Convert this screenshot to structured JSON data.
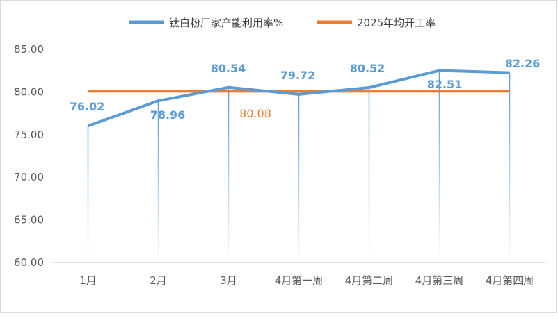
{
  "chart_data": {
    "type": "line",
    "title": "",
    "xlabel": "",
    "ylabel": "",
    "ylim": [
      60,
      85
    ],
    "yticks": [
      "60.00",
      "65.00",
      "70.00",
      "75.00",
      "80.00",
      "85.00"
    ],
    "categories": [
      "1月",
      "2月",
      "3月",
      "4月第一周",
      "4月第二周",
      "4月第三周",
      "4月第四周"
    ],
    "legend_position": "top",
    "grid": false,
    "drop_lines": true,
    "series": [
      {
        "name": "钛白粉厂家产能利用率%",
        "color": "#5b9bd5",
        "values": [
          76.02,
          78.96,
          80.54,
          79.72,
          80.52,
          82.51,
          82.26
        ],
        "labels": [
          "76.02",
          "78.96",
          "80.54",
          "79.72",
          "80.52",
          "82.51",
          "82.26"
        ]
      },
      {
        "name": "2025年均开工率",
        "color": "#ed7d31",
        "values": [
          80.08,
          80.08,
          80.08,
          80.08,
          80.08,
          80.08,
          80.08
        ],
        "labels": [
          "80.08"
        ]
      }
    ]
  }
}
